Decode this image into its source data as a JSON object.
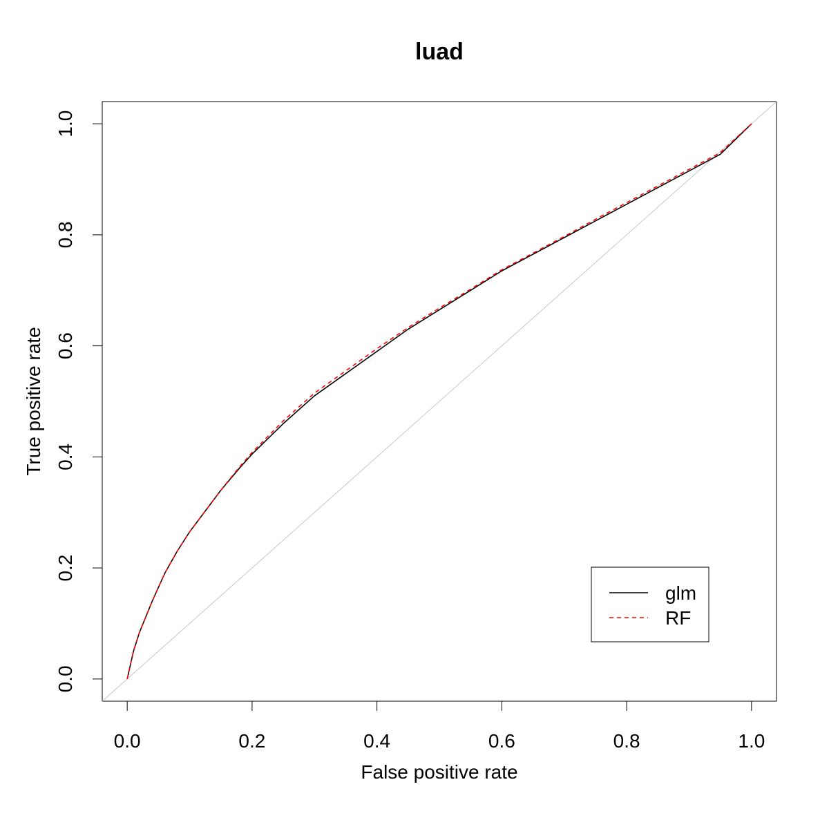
{
  "chart_data": {
    "type": "line",
    "title": "luad",
    "xlabel": "False positive rate",
    "ylabel": "True positive rate",
    "xlim": [
      -0.04,
      1.04
    ],
    "ylim": [
      -0.04,
      1.04
    ],
    "xticks": [
      "0.0",
      "0.2",
      "0.4",
      "0.6",
      "0.8",
      "1.0"
    ],
    "yticks": [
      "0.0",
      "0.2",
      "0.4",
      "0.6",
      "0.8",
      "1.0"
    ],
    "grid": false,
    "legend_position": "bottom-right",
    "reference_line": {
      "x": [
        0,
        1
      ],
      "y": [
        0,
        1
      ],
      "color": "#c8c8c8"
    },
    "series": [
      {
        "name": "glm",
        "color": "#000000",
        "style": "solid",
        "x": [
          0,
          0.01,
          0.02,
          0.04,
          0.06,
          0.08,
          0.1,
          0.12,
          0.15,
          0.18,
          0.2,
          0.25,
          0.3,
          0.35,
          0.4,
          0.45,
          0.5,
          0.55,
          0.6,
          0.65,
          0.7,
          0.75,
          0.8,
          0.85,
          0.9,
          0.95,
          1.0
        ],
        "y": [
          0,
          0.05,
          0.085,
          0.14,
          0.19,
          0.23,
          0.265,
          0.295,
          0.34,
          0.38,
          0.405,
          0.46,
          0.51,
          0.55,
          0.59,
          0.63,
          0.665,
          0.7,
          0.735,
          0.765,
          0.795,
          0.825,
          0.855,
          0.885,
          0.915,
          0.945,
          1.0
        ]
      },
      {
        "name": "RF",
        "color": "#ff0000",
        "style": "dashed",
        "x": [
          0,
          0.01,
          0.02,
          0.04,
          0.06,
          0.08,
          0.1,
          0.12,
          0.15,
          0.18,
          0.2,
          0.25,
          0.3,
          0.35,
          0.4,
          0.45,
          0.5,
          0.55,
          0.6,
          0.65,
          0.7,
          0.75,
          0.8,
          0.85,
          0.9,
          0.95,
          1.0
        ],
        "y": [
          0,
          0.05,
          0.085,
          0.14,
          0.19,
          0.23,
          0.265,
          0.295,
          0.34,
          0.382,
          0.408,
          0.465,
          0.515,
          0.555,
          0.595,
          0.633,
          0.668,
          0.702,
          0.737,
          0.767,
          0.797,
          0.828,
          0.858,
          0.888,
          0.918,
          0.948,
          1.0
        ]
      }
    ]
  }
}
